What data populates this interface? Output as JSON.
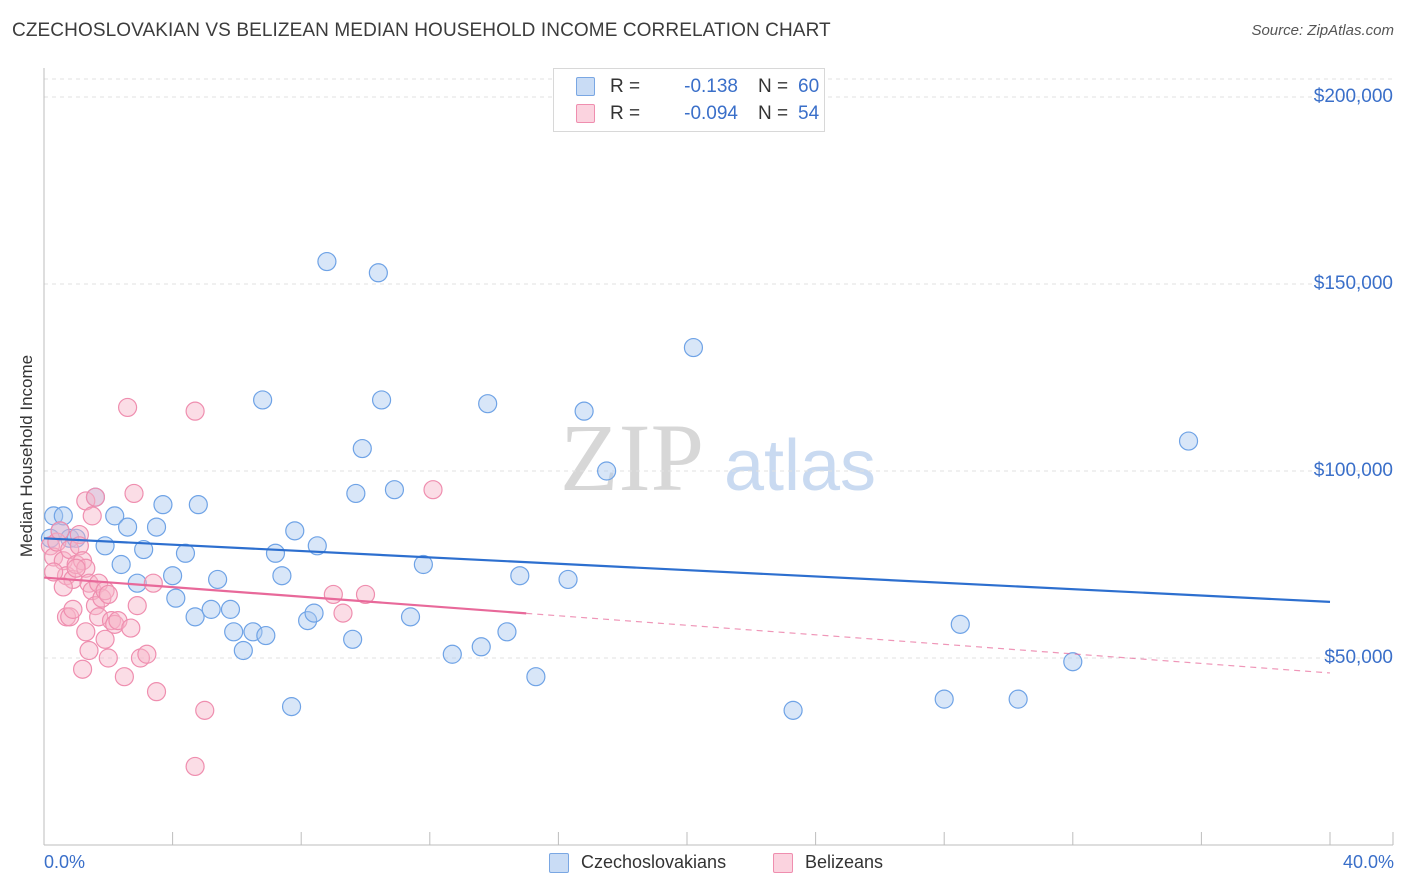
{
  "title": "CZECHOSLOVAKIAN VS BELIZEAN MEDIAN HOUSEHOLD INCOME CORRELATION CHART",
  "source": "Source: ZipAtlas.com",
  "watermark": {
    "zip": "ZIP",
    "atlas": "atlas"
  },
  "legend_top": [
    {
      "r_label": "R =",
      "r_value": "-0.138",
      "n_label": "N =",
      "n_value": "60",
      "color": "#a9c8f0"
    },
    {
      "r_label": "R =",
      "r_value": "-0.094",
      "n_label": "N =",
      "n_value": "54",
      "color": "#f6b3c8"
    }
  ],
  "legend_bottom": [
    {
      "label": "Czechoslovakians",
      "color": "#a9c8f0"
    },
    {
      "label": "Belizeans",
      "color": "#f6b3c8"
    }
  ],
  "chart_data": {
    "type": "scatter",
    "title": "CZECHOSLOVAKIAN VS BELIZEAN MEDIAN HOUSEHOLD INCOME CORRELATION CHART",
    "xlabel": "",
    "ylabel": "Median Household Income",
    "xlim": [
      0,
      40
    ],
    "ylim": [
      0,
      205000
    ],
    "x_tick_labels": [
      "0.0%",
      "40.0%"
    ],
    "y_ticks": [
      50000,
      100000,
      150000,
      200000
    ],
    "y_tick_labels": [
      "$50,000",
      "$100,000",
      "$150,000",
      "$200,000"
    ],
    "grid": true,
    "series": [
      {
        "name": "Czechoslovakians",
        "color": "#6fa3e6",
        "fill": "#a9c8f0",
        "trend": {
          "x": [
            0,
            40
          ],
          "y": [
            82000,
            65000
          ],
          "solid_to": 40
        },
        "points": [
          [
            0.3,
            88000
          ],
          [
            0.5,
            84000
          ],
          [
            0.6,
            88000
          ],
          [
            0.8,
            82000
          ],
          [
            1.0,
            82000
          ],
          [
            1.6,
            93000
          ],
          [
            1.9,
            80000
          ],
          [
            2.2,
            88000
          ],
          [
            2.4,
            75000
          ],
          [
            2.6,
            85000
          ],
          [
            2.9,
            70000
          ],
          [
            3.1,
            79000
          ],
          [
            3.5,
            85000
          ],
          [
            3.7,
            91000
          ],
          [
            4.0,
            72000
          ],
          [
            4.1,
            66000
          ],
          [
            4.4,
            78000
          ],
          [
            4.7,
            61000
          ],
          [
            4.8,
            91000
          ],
          [
            5.2,
            63000
          ],
          [
            5.4,
            71000
          ],
          [
            5.8,
            63000
          ],
          [
            5.9,
            57000
          ],
          [
            6.2,
            52000
          ],
          [
            6.5,
            57000
          ],
          [
            6.8,
            119000
          ],
          [
            6.9,
            56000
          ],
          [
            7.2,
            78000
          ],
          [
            7.4,
            72000
          ],
          [
            7.7,
            37000
          ],
          [
            7.8,
            84000
          ],
          [
            8.2,
            60000
          ],
          [
            8.4,
            62000
          ],
          [
            8.5,
            80000
          ],
          [
            8.8,
            156000
          ],
          [
            9.6,
            55000
          ],
          [
            9.7,
            94000
          ],
          [
            9.9,
            106000
          ],
          [
            10.4,
            153000
          ],
          [
            10.5,
            119000
          ],
          [
            10.9,
            95000
          ],
          [
            11.4,
            61000
          ],
          [
            11.8,
            75000
          ],
          [
            12.7,
            51000
          ],
          [
            13.6,
            53000
          ],
          [
            13.8,
            118000
          ],
          [
            14.4,
            57000
          ],
          [
            14.8,
            72000
          ],
          [
            15.3,
            45000
          ],
          [
            16.3,
            71000
          ],
          [
            16.8,
            116000
          ],
          [
            17.5,
            100000
          ],
          [
            20.2,
            133000
          ],
          [
            23.3,
            36000
          ],
          [
            28.0,
            39000
          ],
          [
            28.5,
            59000
          ],
          [
            30.3,
            39000
          ],
          [
            32.0,
            49000
          ],
          [
            35.6,
            108000
          ],
          [
            0.2,
            82000
          ]
        ]
      },
      {
        "name": "Belizeans",
        "color": "#ef8eaf",
        "fill": "#f6b3c8",
        "trend": {
          "x": [
            0,
            40
          ],
          "y": [
            71500,
            46000
          ],
          "solid_to": 15
        },
        "points": [
          [
            0.2,
            80000
          ],
          [
            0.3,
            77000
          ],
          [
            0.4,
            81000
          ],
          [
            0.5,
            84000
          ],
          [
            0.6,
            76000
          ],
          [
            0.7,
            72000
          ],
          [
            0.8,
            79000
          ],
          [
            0.9,
            71000
          ],
          [
            1.0,
            75000
          ],
          [
            0.7,
            61000
          ],
          [
            0.8,
            61000
          ],
          [
            1.1,
            83000
          ],
          [
            1.1,
            80000
          ],
          [
            1.2,
            76000
          ],
          [
            1.3,
            74000
          ],
          [
            1.3,
            92000
          ],
          [
            1.4,
            70000
          ],
          [
            1.2,
            47000
          ],
          [
            1.3,
            57000
          ],
          [
            1.5,
            68000
          ],
          [
            1.5,
            88000
          ],
          [
            1.6,
            93000
          ],
          [
            1.6,
            64000
          ],
          [
            1.7,
            61000
          ],
          [
            1.7,
            70000
          ],
          [
            1.8,
            66000
          ],
          [
            1.9,
            68000
          ],
          [
            1.9,
            55000
          ],
          [
            2.0,
            67000
          ],
          [
            2.1,
            60000
          ],
          [
            2.2,
            59000
          ],
          [
            2.3,
            60000
          ],
          [
            2.0,
            50000
          ],
          [
            2.5,
            45000
          ],
          [
            2.6,
            117000
          ],
          [
            2.8,
            94000
          ],
          [
            2.9,
            64000
          ],
          [
            3.0,
            50000
          ],
          [
            3.2,
            51000
          ],
          [
            3.4,
            70000
          ],
          [
            3.5,
            41000
          ],
          [
            4.7,
            116000
          ],
          [
            4.7,
            21000
          ],
          [
            5.0,
            36000
          ],
          [
            9.0,
            67000
          ],
          [
            9.3,
            62000
          ],
          [
            10.0,
            67000
          ],
          [
            12.1,
            95000
          ],
          [
            0.3,
            73000
          ],
          [
            0.9,
            63000
          ],
          [
            1.4,
            52000
          ],
          [
            2.7,
            58000
          ],
          [
            0.6,
            69000
          ],
          [
            1.0,
            74000
          ]
        ]
      }
    ]
  }
}
